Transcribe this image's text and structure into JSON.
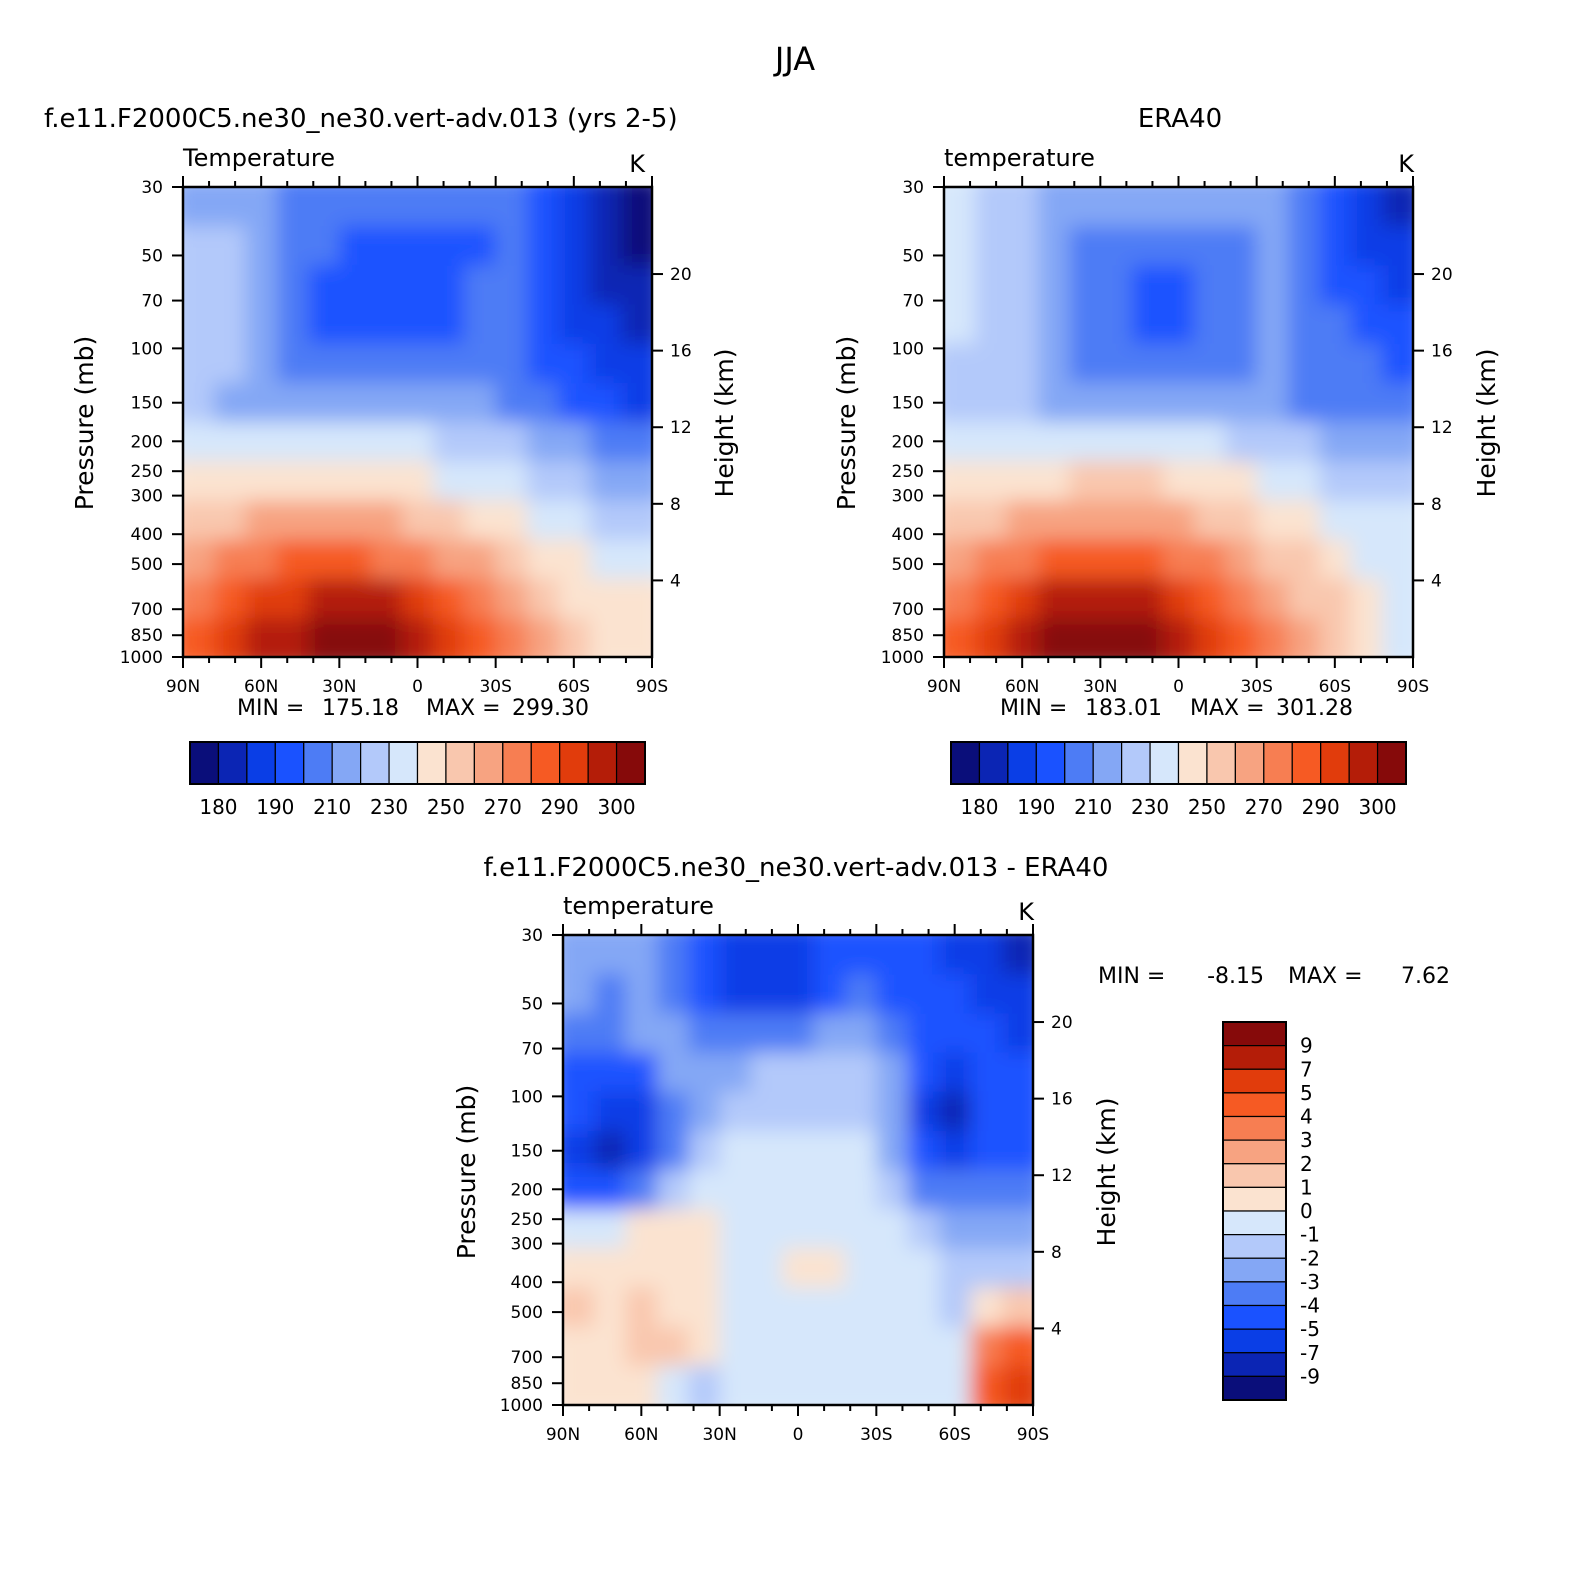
{
  "figure": {
    "title": "JJA"
  },
  "chart_data": [
    {
      "id": "model",
      "type": "heatmap",
      "title": "f.e11.F2000C5.ne30_ne30.vert-adv.013 (yrs 2-5)",
      "subtitle": "Temperature",
      "units": "K",
      "xlabel": "",
      "ylabel": "Pressure (mb)",
      "y2label": "Height (km)",
      "x_ticks": [
        "90N",
        "60N",
        "30N",
        "0",
        "30S",
        "60S",
        "90S"
      ],
      "y_ticks": [
        "30",
        "50",
        "70",
        "100",
        "150",
        "200",
        "250",
        "300",
        "400",
        "500",
        "700",
        "850",
        "1000"
      ],
      "y2_ticks": [
        "20",
        "16",
        "12",
        "8",
        "4"
      ],
      "stats": {
        "min_label": "MIN =",
        "min": "175.18",
        "max_label": "MAX =",
        "max": "299.30"
      },
      "colorbar_labels": [
        "180",
        "190",
        "210",
        "230",
        "250",
        "270",
        "290",
        "300"
      ],
      "colormap": [
        "#0a0e7a",
        "#0b25b4",
        "#0a3ee6",
        "#1a52ff",
        "#4d7cf5",
        "#84a7f5",
        "#b3c9fa",
        "#d6e7fb",
        "#fbe3d0",
        "#f9c7ae",
        "#f7a381",
        "#f77e52",
        "#f65a23",
        "#e13c0c",
        "#b41d08",
        "#860a0a"
      ],
      "field": [
        [
          5,
          5,
          5,
          4,
          4,
          4,
          4,
          4,
          4,
          4,
          4,
          3,
          2,
          1,
          0
        ],
        [
          6,
          6,
          5,
          4,
          4,
          3,
          3,
          3,
          3,
          3,
          4,
          3,
          2,
          1,
          0
        ],
        [
          6,
          6,
          5,
          4,
          3,
          3,
          3,
          3,
          3,
          4,
          4,
          3,
          2,
          1,
          1
        ],
        [
          6,
          6,
          5,
          4,
          3,
          3,
          3,
          3,
          3,
          4,
          4,
          3,
          2,
          2,
          1
        ],
        [
          6,
          6,
          5,
          4,
          4,
          4,
          4,
          4,
          4,
          4,
          4,
          3,
          3,
          2,
          2
        ],
        [
          6,
          5,
          5,
          5,
          5,
          5,
          5,
          5,
          5,
          5,
          4,
          4,
          3,
          3,
          2
        ],
        [
          7,
          7,
          7,
          7,
          7,
          7,
          7,
          7,
          6,
          6,
          6,
          5,
          5,
          4,
          4
        ],
        [
          8,
          8,
          8,
          8,
          8,
          8,
          8,
          8,
          7,
          7,
          7,
          6,
          6,
          5,
          5
        ],
        [
          9,
          9,
          10,
          10,
          10,
          10,
          10,
          9,
          9,
          8,
          8,
          7,
          7,
          6,
          6
        ],
        [
          10,
          11,
          11,
          12,
          12,
          12,
          11,
          11,
          10,
          10,
          9,
          8,
          8,
          7,
          7
        ],
        [
          11,
          12,
          13,
          13,
          14,
          14,
          14,
          13,
          12,
          11,
          10,
          9,
          8,
          8,
          8
        ],
        [
          12,
          13,
          14,
          14,
          15,
          15,
          15,
          14,
          13,
          12,
          11,
          10,
          9,
          8,
          8
        ]
      ]
    },
    {
      "id": "obs",
      "type": "heatmap",
      "title": "ERA40",
      "subtitle": "temperature",
      "units": "K",
      "xlabel": "",
      "ylabel": "Pressure (mb)",
      "y2label": "Height (km)",
      "x_ticks": [
        "90N",
        "60N",
        "30N",
        "0",
        "30S",
        "60S",
        "90S"
      ],
      "y_ticks": [
        "30",
        "50",
        "70",
        "100",
        "150",
        "200",
        "250",
        "300",
        "400",
        "500",
        "700",
        "850",
        "1000"
      ],
      "y2_ticks": [
        "20",
        "16",
        "12",
        "8",
        "4"
      ],
      "stats": {
        "min_label": "MIN =",
        "min": "183.01",
        "max_label": "MAX =",
        "max": "301.28"
      },
      "colorbar_labels": [
        "180",
        "190",
        "210",
        "230",
        "250",
        "270",
        "290",
        "300"
      ],
      "colormap": [
        "#0a0e7a",
        "#0b25b4",
        "#0a3ee6",
        "#1a52ff",
        "#4d7cf5",
        "#84a7f5",
        "#b3c9fa",
        "#d6e7fb",
        "#fbe3d0",
        "#f9c7ae",
        "#f7a381",
        "#f77e52",
        "#f65a23",
        "#e13c0c",
        "#b41d08",
        "#860a0a"
      ],
      "field": [
        [
          7,
          6,
          6,
          5,
          5,
          5,
          5,
          5,
          5,
          5,
          5,
          4,
          3,
          2,
          1
        ],
        [
          7,
          6,
          6,
          5,
          4,
          4,
          4,
          4,
          4,
          4,
          5,
          4,
          3,
          2,
          2
        ],
        [
          7,
          6,
          6,
          5,
          4,
          4,
          3,
          3,
          4,
          4,
          5,
          4,
          3,
          3,
          2
        ],
        [
          7,
          6,
          6,
          5,
          4,
          4,
          3,
          3,
          4,
          4,
          5,
          4,
          4,
          3,
          3
        ],
        [
          6,
          6,
          6,
          5,
          4,
          4,
          4,
          4,
          4,
          4,
          5,
          4,
          4,
          4,
          3
        ],
        [
          6,
          6,
          6,
          5,
          5,
          5,
          5,
          5,
          5,
          5,
          5,
          4,
          4,
          4,
          4
        ],
        [
          7,
          7,
          7,
          7,
          7,
          7,
          7,
          7,
          7,
          6,
          6,
          6,
          5,
          5,
          5
        ],
        [
          8,
          8,
          8,
          8,
          9,
          9,
          9,
          8,
          8,
          8,
          7,
          7,
          6,
          6,
          6
        ],
        [
          9,
          9,
          10,
          10,
          10,
          10,
          10,
          10,
          9,
          9,
          8,
          8,
          7,
          7,
          7
        ],
        [
          10,
          11,
          11,
          12,
          12,
          12,
          12,
          11,
          11,
          10,
          9,
          9,
          8,
          7,
          7
        ],
        [
          11,
          12,
          13,
          14,
          14,
          14,
          14,
          13,
          12,
          11,
          10,
          9,
          9,
          8,
          7
        ],
        [
          12,
          13,
          14,
          15,
          15,
          15,
          15,
          14,
          13,
          12,
          11,
          10,
          9,
          8,
          7
        ]
      ]
    },
    {
      "id": "diff",
      "type": "heatmap",
      "title": "f.e11.F2000C5.ne30_ne30.vert-adv.013 - ERA40",
      "subtitle": "temperature",
      "units": "K",
      "xlabel": "",
      "ylabel": "Pressure (mb)",
      "y2label": "Height (km)",
      "x_ticks": [
        "90N",
        "60N",
        "30N",
        "0",
        "30S",
        "60S",
        "90S"
      ],
      "y_ticks": [
        "30",
        "50",
        "70",
        "100",
        "150",
        "200",
        "250",
        "300",
        "400",
        "500",
        "700",
        "850",
        "1000"
      ],
      "y2_ticks": [
        "20",
        "16",
        "12",
        "8",
        "4"
      ],
      "stats": {
        "min_label": "MIN =",
        "min": "-8.15",
        "max_label": "MAX =",
        "max": "7.62"
      },
      "colorbar_labels": [
        "9",
        "7",
        "5",
        "4",
        "3",
        "2",
        "1",
        "0",
        "-1",
        "-2",
        "-3",
        "-4",
        "-5",
        "-7",
        "-9"
      ],
      "colormap": [
        "#860a0a",
        "#b41d08",
        "#e13c0c",
        "#f65a23",
        "#f77e52",
        "#f7a381",
        "#f9c7ae",
        "#fbe3d0",
        "#d6e7fb",
        "#b3c9fa",
        "#84a7f5",
        "#4d7cf5",
        "#1a52ff",
        "#0a3ee6",
        "#0b25b4",
        "#0a0e7a"
      ],
      "field": [
        [
          10,
          10,
          10,
          11,
          12,
          13,
          13,
          13,
          12,
          12,
          12,
          12,
          13,
          13,
          14
        ],
        [
          10,
          11,
          10,
          11,
          12,
          13,
          13,
          13,
          12,
          11,
          12,
          12,
          12,
          13,
          13
        ],
        [
          11,
          11,
          10,
          10,
          11,
          11,
          11,
          11,
          10,
          10,
          11,
          12,
          12,
          12,
          13
        ],
        [
          12,
          12,
          12,
          10,
          10,
          10,
          9,
          9,
          9,
          9,
          10,
          12,
          13,
          12,
          12
        ],
        [
          12,
          13,
          13,
          11,
          10,
          9,
          9,
          9,
          9,
          9,
          10,
          13,
          14,
          12,
          12
        ],
        [
          13,
          14,
          13,
          11,
          9,
          8,
          8,
          8,
          8,
          8,
          10,
          12,
          13,
          12,
          12
        ],
        [
          12,
          12,
          11,
          9,
          8,
          8,
          8,
          8,
          8,
          8,
          9,
          11,
          11,
          11,
          11
        ],
        [
          8,
          8,
          7,
          7,
          7,
          8,
          8,
          8,
          8,
          8,
          8,
          9,
          10,
          10,
          10
        ],
        [
          7,
          7,
          7,
          7,
          7,
          8,
          8,
          7,
          7,
          8,
          8,
          8,
          9,
          9,
          9
        ],
        [
          6,
          7,
          6,
          7,
          7,
          8,
          8,
          8,
          8,
          8,
          8,
          8,
          9,
          7,
          6
        ],
        [
          7,
          7,
          6,
          6,
          7,
          8,
          8,
          8,
          8,
          8,
          8,
          8,
          8,
          4,
          3
        ],
        [
          7,
          7,
          7,
          8,
          9,
          8,
          8,
          8,
          8,
          8,
          8,
          8,
          8,
          3,
          2
        ]
      ]
    }
  ]
}
